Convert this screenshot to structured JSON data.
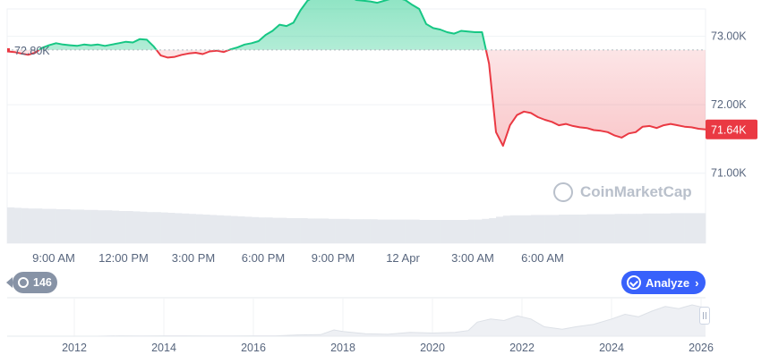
{
  "chart_data": [
    {
      "type": "area",
      "baseline": 72.8,
      "baseline_label": "72.80K",
      "current_label": "71.64K",
      "ylim": [
        70.5,
        73.4
      ],
      "y_ticks": [
        71.0,
        72.0,
        73.0
      ],
      "y_tick_labels": [
        "71.00K",
        "72.00K",
        "73.00K"
      ],
      "x_tick_labels": [
        "9:00 AM",
        "12:00 PM",
        "3:00 PM",
        "6:00 PM",
        "9:00 PM",
        "12 Apr",
        "3:00 AM",
        "6:00 AM"
      ],
      "x_hours": [
        0.0,
        0.3,
        0.6,
        0.9,
        1.2,
        1.5,
        1.8,
        2.1,
        2.4,
        2.7,
        3.0,
        3.3,
        3.6,
        3.9,
        4.2,
        4.5,
        4.8,
        5.1,
        5.4,
        5.7,
        6.0,
        6.3,
        6.6,
        6.9,
        7.2,
        7.5,
        7.8,
        8.1,
        8.4,
        8.7,
        9.0,
        9.3,
        9.6,
        9.9,
        10.2,
        10.5,
        10.8,
        11.1,
        11.4,
        11.7,
        12.0,
        12.3,
        12.6,
        12.9,
        13.2,
        13.5,
        13.8,
        14.1,
        14.4,
        14.7,
        15.0,
        15.3,
        15.6,
        15.9,
        16.2,
        16.5,
        16.8,
        17.1,
        17.4,
        17.7,
        18.0,
        18.3,
        18.6,
        18.9,
        19.2,
        19.5,
        19.8,
        20.1,
        20.4,
        20.7,
        21.0,
        21.3,
        21.6,
        21.9,
        22.2,
        22.5,
        22.8,
        23.1,
        23.4,
        23.7,
        24.0,
        24.3,
        24.6,
        24.9,
        25.2,
        25.5,
        25.8,
        26.1,
        26.4,
        26.7,
        27.0,
        27.3,
        27.6,
        27.9,
        28.2,
        28.5,
        28.8,
        29.1,
        29.4,
        29.7,
        30.0
      ],
      "series": [
        {
          "values": [
            72.78,
            72.77,
            72.75,
            72.73,
            72.76,
            72.83,
            72.87,
            72.9,
            72.88,
            72.87,
            72.86,
            72.88,
            72.87,
            72.88,
            72.86,
            72.88,
            72.9,
            72.92,
            72.91,
            72.96,
            72.95,
            72.85,
            72.72,
            72.69,
            72.7,
            72.73,
            72.75,
            72.76,
            72.74,
            72.78,
            72.79,
            72.77,
            72.81,
            72.84,
            72.88,
            72.9,
            72.93,
            73.02,
            73.08,
            73.17,
            73.15,
            73.2,
            73.38,
            73.52,
            73.58,
            73.62,
            73.64,
            73.66,
            73.6,
            73.58,
            73.53,
            73.52,
            73.51,
            73.49,
            73.52,
            73.55,
            73.56,
            73.53,
            73.46,
            73.4,
            73.18,
            73.12,
            73.1,
            73.06,
            73.04,
            73.08,
            73.07,
            73.06,
            73.06,
            72.6,
            71.6,
            71.4,
            71.7,
            71.85,
            71.9,
            71.88,
            71.82,
            71.78,
            71.75,
            71.7,
            71.72,
            71.69,
            71.67,
            71.66,
            71.63,
            71.62,
            71.6,
            71.55,
            71.52,
            71.58,
            71.6,
            71.68,
            71.69,
            71.66,
            71.7,
            71.72,
            71.7,
            71.68,
            71.67,
            71.65,
            71.64
          ]
        }
      ],
      "volume": [
        1.0,
        0.99,
        0.98,
        0.97,
        0.97,
        0.96,
        0.96,
        0.95,
        0.95,
        0.94,
        0.94,
        0.93,
        0.93,
        0.92,
        0.92,
        0.91,
        0.9,
        0.9,
        0.89,
        0.88,
        0.87,
        0.87,
        0.86,
        0.85,
        0.84,
        0.83,
        0.82,
        0.81,
        0.8,
        0.79,
        0.78,
        0.77,
        0.76,
        0.75,
        0.74,
        0.73,
        0.72,
        0.72,
        0.71,
        0.71,
        0.7,
        0.7,
        0.7,
        0.69,
        0.69,
        0.69,
        0.68,
        0.68,
        0.68,
        0.67,
        0.67,
        0.67,
        0.67,
        0.66,
        0.66,
        0.66,
        0.66,
        0.66,
        0.66,
        0.65,
        0.65,
        0.65,
        0.65,
        0.65,
        0.65,
        0.65,
        0.66,
        0.66,
        0.68,
        0.7,
        0.74,
        0.77,
        0.78,
        0.78,
        0.78,
        0.79,
        0.79,
        0.79,
        0.79,
        0.8,
        0.8,
        0.8,
        0.8,
        0.81,
        0.81,
        0.81,
        0.81,
        0.82,
        0.82,
        0.82,
        0.82,
        0.83,
        0.83,
        0.83,
        0.83,
        0.84,
        0.84,
        0.84,
        0.84,
        0.84,
        0.85
      ],
      "colors": {
        "up": "#16c784",
        "down": "#ea3943",
        "baseline": "#b2b7bf",
        "grid": "#eff2f5",
        "volume": "#e6e9ee"
      }
    },
    {
      "type": "area",
      "x_tick_labels": [
        "2012",
        "2014",
        "2016",
        "2018",
        "2020",
        "2022",
        "2024",
        "2026"
      ],
      "x": [
        2010.5,
        2011.0,
        2011.5,
        2012.0,
        2012.5,
        2013.0,
        2013.5,
        2014.0,
        2014.5,
        2015.0,
        2015.5,
        2016.0,
        2016.5,
        2017.0,
        2017.5,
        2017.8,
        2018.0,
        2018.5,
        2019.0,
        2019.5,
        2020.0,
        2020.5,
        2020.8,
        2021.0,
        2021.3,
        2021.6,
        2021.9,
        2022.2,
        2022.5,
        2022.9,
        2023.2,
        2023.6,
        2024.0,
        2024.3,
        2024.6,
        2024.9,
        2025.2,
        2025.5,
        2025.8,
        2026.1
      ],
      "values": [
        0,
        0,
        0,
        0,
        0,
        0.01,
        0.005,
        0.01,
        0.01,
        0.005,
        0.005,
        0.01,
        0.01,
        0.04,
        0.05,
        0.2,
        0.15,
        0.08,
        0.06,
        0.12,
        0.1,
        0.12,
        0.18,
        0.45,
        0.55,
        0.5,
        0.65,
        0.55,
        0.3,
        0.22,
        0.3,
        0.38,
        0.55,
        0.7,
        0.62,
        0.8,
        0.95,
        0.88,
        1.0,
        0.9
      ],
      "colors": {
        "fill": "#eef0f4",
        "line": "#dde1e7"
      }
    }
  ],
  "history_badge": {
    "count": "146",
    "icon": "history-icon"
  },
  "analyze_button": {
    "label": "Analyze",
    "icon": "analyze-icon",
    "chevron": "›"
  },
  "watermark": {
    "text": "CoinMarketCap"
  }
}
